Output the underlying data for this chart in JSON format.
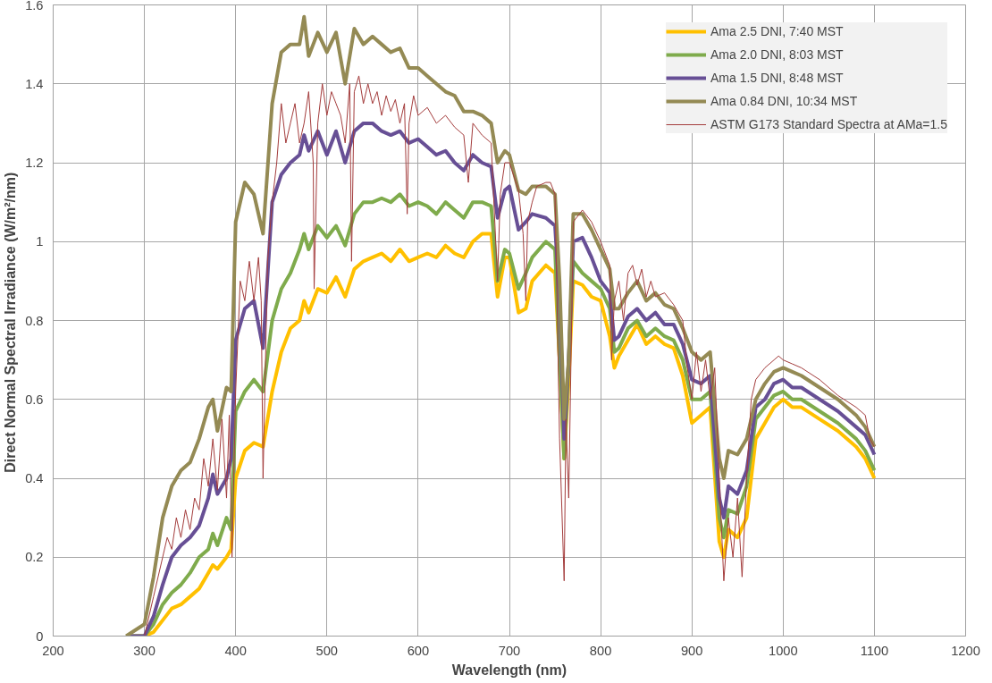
{
  "chart_data": {
    "type": "line",
    "xlabel": "Wavelength (nm)",
    "ylabel": "Direct Normal  Spectral Irradiance (W/m²/nm)",
    "xlim": [
      200,
      1200
    ],
    "xticks": [
      200,
      300,
      400,
      500,
      600,
      700,
      800,
      900,
      1000,
      1100,
      1200
    ],
    "ylim": [
      0,
      1.6
    ],
    "yticks": [
      0,
      0.2,
      0.4,
      0.6,
      0.8,
      1,
      1.2,
      1.4,
      1.6
    ],
    "grid": true,
    "legend": "top right",
    "marker": "none",
    "line_style": "solid",
    "x": [
      280,
      300,
      310,
      320,
      330,
      340,
      350,
      360,
      370,
      375,
      380,
      390,
      395,
      400,
      410,
      420,
      430,
      440,
      450,
      460,
      470,
      475,
      480,
      490,
      500,
      510,
      520,
      530,
      540,
      550,
      560,
      570,
      580,
      590,
      600,
      610,
      620,
      630,
      640,
      650,
      660,
      670,
      680,
      687,
      695,
      700,
      710,
      718,
      725,
      740,
      750,
      755,
      760,
      765,
      770,
      780,
      790,
      800,
      810,
      815,
      820,
      830,
      840,
      850,
      860,
      870,
      880,
      890,
      900,
      910,
      920,
      930,
      935,
      940,
      950,
      960,
      970,
      980,
      990,
      1000,
      1010,
      1020,
      1040,
      1060,
      1080,
      1090,
      1100
    ],
    "series": [
      {
        "name": "Ama 2.5 DNI, 7:40 MST",
        "color": "#ffc000",
        "values": [
          0,
          0,
          0.01,
          0.04,
          0.07,
          0.08,
          0.1,
          0.12,
          0.16,
          0.18,
          0.17,
          0.2,
          0.22,
          0.4,
          0.47,
          0.49,
          0.48,
          0.62,
          0.72,
          0.78,
          0.8,
          0.85,
          0.82,
          0.88,
          0.87,
          0.91,
          0.86,
          0.93,
          0.95,
          0.96,
          0.97,
          0.95,
          0.98,
          0.95,
          0.96,
          0.97,
          0.96,
          0.99,
          0.97,
          0.96,
          1.0,
          1.02,
          1.02,
          0.86,
          0.96,
          0.96,
          0.82,
          0.83,
          0.9,
          0.94,
          0.92,
          0.7,
          0.45,
          0.65,
          0.9,
          0.89,
          0.86,
          0.85,
          0.76,
          0.68,
          0.71,
          0.75,
          0.79,
          0.74,
          0.76,
          0.74,
          0.73,
          0.66,
          0.54,
          0.56,
          0.58,
          0.24,
          0.2,
          0.27,
          0.25,
          0.3,
          0.5,
          0.54,
          0.58,
          0.6,
          0.58,
          0.58,
          0.55,
          0.52,
          0.48,
          0.45,
          0.4
        ]
      },
      {
        "name": "Ama 2.0 DNI, 8:03 MST",
        "color": "#7fab4c",
        "values": [
          0,
          0,
          0.03,
          0.08,
          0.11,
          0.13,
          0.16,
          0.2,
          0.22,
          0.26,
          0.23,
          0.3,
          0.27,
          0.57,
          0.62,
          0.65,
          0.62,
          0.8,
          0.88,
          0.92,
          0.98,
          1.02,
          0.98,
          1.04,
          1.01,
          1.04,
          0.99,
          1.07,
          1.1,
          1.1,
          1.11,
          1.1,
          1.12,
          1.09,
          1.1,
          1.09,
          1.07,
          1.1,
          1.08,
          1.06,
          1.1,
          1.1,
          1.09,
          0.9,
          0.98,
          0.97,
          0.88,
          0.92,
          0.96,
          1.0,
          0.98,
          0.7,
          0.45,
          0.7,
          0.95,
          0.92,
          0.9,
          0.88,
          0.83,
          0.72,
          0.73,
          0.78,
          0.8,
          0.76,
          0.78,
          0.76,
          0.75,
          0.7,
          0.6,
          0.6,
          0.62,
          0.3,
          0.25,
          0.32,
          0.31,
          0.38,
          0.55,
          0.58,
          0.61,
          0.62,
          0.6,
          0.6,
          0.57,
          0.54,
          0.5,
          0.47,
          0.42
        ]
      },
      {
        "name": "Ama 1.5 DNI, 8:48 MST",
        "color": "#674f95",
        "values": [
          0,
          0,
          0.05,
          0.13,
          0.2,
          0.23,
          0.25,
          0.28,
          0.35,
          0.41,
          0.36,
          0.4,
          0.45,
          0.75,
          0.83,
          0.85,
          0.73,
          1.1,
          1.17,
          1.2,
          1.22,
          1.27,
          1.23,
          1.28,
          1.22,
          1.28,
          1.2,
          1.28,
          1.3,
          1.3,
          1.28,
          1.27,
          1.28,
          1.25,
          1.26,
          1.24,
          1.22,
          1.23,
          1.2,
          1.18,
          1.22,
          1.2,
          1.19,
          1.06,
          1.13,
          1.14,
          1.03,
          1.05,
          1.07,
          1.06,
          1.04,
          0.85,
          0.5,
          0.7,
          1.0,
          1.01,
          0.96,
          0.9,
          0.87,
          0.75,
          0.76,
          0.81,
          0.83,
          0.8,
          0.82,
          0.79,
          0.79,
          0.74,
          0.65,
          0.64,
          0.66,
          0.35,
          0.3,
          0.38,
          0.36,
          0.42,
          0.58,
          0.6,
          0.64,
          0.65,
          0.63,
          0.63,
          0.6,
          0.57,
          0.53,
          0.51,
          0.46
        ]
      },
      {
        "name": "Ama 0.84 DNI, 10:34 MST",
        "color": "#948a54",
        "values": [
          0,
          0.03,
          0.15,
          0.3,
          0.38,
          0.42,
          0.44,
          0.5,
          0.58,
          0.6,
          0.52,
          0.63,
          0.62,
          1.05,
          1.15,
          1.12,
          1.02,
          1.35,
          1.48,
          1.5,
          1.5,
          1.57,
          1.47,
          1.53,
          1.48,
          1.53,
          1.4,
          1.54,
          1.5,
          1.52,
          1.5,
          1.48,
          1.49,
          1.44,
          1.44,
          1.42,
          1.4,
          1.38,
          1.37,
          1.33,
          1.33,
          1.32,
          1.3,
          1.2,
          1.23,
          1.22,
          1.13,
          1.12,
          1.14,
          1.14,
          1.12,
          0.9,
          0.55,
          0.7,
          1.07,
          1.07,
          1.03,
          0.98,
          0.93,
          0.83,
          0.83,
          0.87,
          0.9,
          0.85,
          0.87,
          0.84,
          0.83,
          0.78,
          0.72,
          0.7,
          0.72,
          0.45,
          0.4,
          0.47,
          0.46,
          0.5,
          0.6,
          0.64,
          0.67,
          0.68,
          0.67,
          0.66,
          0.63,
          0.6,
          0.56,
          0.53,
          0.48
        ]
      },
      {
        "name": "ASTM G173 Standard Spectra at AMa=1.5",
        "color": "#a33c3c",
        "x": [
          280,
          300,
          310,
          320,
          325,
          330,
          335,
          340,
          345,
          350,
          355,
          360,
          365,
          370,
          375,
          380,
          385,
          390,
          393,
          396,
          400,
          405,
          410,
          415,
          420,
          425,
          428,
          430,
          435,
          440,
          445,
          450,
          455,
          460,
          465,
          470,
          475,
          480,
          485,
          486,
          490,
          495,
          500,
          505,
          510,
          515,
          520,
          525,
          527,
          530,
          535,
          540,
          545,
          550,
          555,
          560,
          565,
          570,
          575,
          580,
          585,
          588,
          590,
          595,
          600,
          610,
          620,
          630,
          640,
          650,
          655,
          660,
          670,
          680,
          687,
          690,
          695,
          700,
          710,
          715,
          718,
          720,
          725,
          730,
          740,
          745,
          750,
          755,
          760,
          762,
          765,
          770,
          780,
          790,
          800,
          810,
          812,
          815,
          820,
          825,
          830,
          835,
          840,
          845,
          850,
          855,
          860,
          870,
          880,
          890,
          895,
          900,
          905,
          910,
          915,
          920,
          925,
          930,
          935,
          940,
          945,
          950,
          955,
          960,
          965,
          970,
          980,
          990,
          995,
          1000,
          1010,
          1020,
          1040,
          1060,
          1080,
          1090,
          1095,
          1100
        ],
        "values": [
          0,
          0,
          0.1,
          0.2,
          0.25,
          0.22,
          0.3,
          0.25,
          0.32,
          0.27,
          0.35,
          0.32,
          0.45,
          0.38,
          0.5,
          0.37,
          0.55,
          0.35,
          0.56,
          0.2,
          0.62,
          0.9,
          0.85,
          0.95,
          0.85,
          0.96,
          0.85,
          0.4,
          0.95,
          1.1,
          1.2,
          1.35,
          1.25,
          1.3,
          1.35,
          1.25,
          1.3,
          1.38,
          1.2,
          0.88,
          1.3,
          1.4,
          1.32,
          1.38,
          1.35,
          1.32,
          1.25,
          1.4,
          0.95,
          1.38,
          1.42,
          1.35,
          1.4,
          1.35,
          1.38,
          1.32,
          1.37,
          1.33,
          1.36,
          1.3,
          1.35,
          1.07,
          1.3,
          1.37,
          1.32,
          1.34,
          1.3,
          1.32,
          1.29,
          1.27,
          1.15,
          1.3,
          1.27,
          1.25,
          0.9,
          1.12,
          1.2,
          1.2,
          1.13,
          1.02,
          0.85,
          1.05,
          1.1,
          1.14,
          1.15,
          1.15,
          1.12,
          0.5,
          0.14,
          0.55,
          0.35,
          1.05,
          1.08,
          1.05,
          1.0,
          0.94,
          0.7,
          0.85,
          0.9,
          0.8,
          0.92,
          0.94,
          0.89,
          0.93,
          0.86,
          0.9,
          0.86,
          0.87,
          0.84,
          0.8,
          0.68,
          0.6,
          0.72,
          0.62,
          0.7,
          0.6,
          0.68,
          0.4,
          0.14,
          0.3,
          0.2,
          0.35,
          0.15,
          0.4,
          0.6,
          0.65,
          0.68,
          0.7,
          0.71,
          0.7,
          0.69,
          0.68,
          0.65,
          0.61,
          0.58,
          0.56,
          0.5,
          0.48
        ]
      }
    ]
  }
}
